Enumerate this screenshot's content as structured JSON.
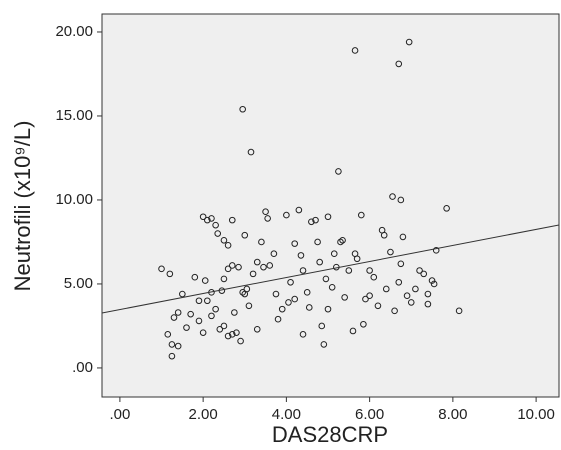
{
  "chart_data": {
    "type": "scatter",
    "xlabel": "DAS28CRP",
    "ylabel": "Neutrofili (x10⁹/L)",
    "xlim": [
      -0.43,
      10.55
    ],
    "ylim": [
      -1.73,
      21.07
    ],
    "xticks": [
      {
        "value": 0,
        "label": ".00"
      },
      {
        "value": 2,
        "label": "2.00"
      },
      {
        "value": 4,
        "label": "4.00"
      },
      {
        "value": 6,
        "label": "6.00"
      },
      {
        "value": 8,
        "label": "8.00"
      },
      {
        "value": 10,
        "label": "10.00"
      }
    ],
    "yticks": [
      {
        "value": 0,
        "label": ".00"
      },
      {
        "value": 5,
        "label": "5.00"
      },
      {
        "value": 10,
        "label": "10.00"
      },
      {
        "value": 15,
        "label": "15.00"
      },
      {
        "value": 20,
        "label": "20.00"
      }
    ],
    "plot_background": "#efefef",
    "marker_color": "#222222",
    "x": [
      2.95,
      3.15,
      5.65,
      6.7,
      6.95,
      5.25,
      6.55,
      6.75,
      7.85,
      8.15,
      1.0,
      1.2,
      1.15,
      1.25,
      1.25,
      1.4,
      1.3,
      1.4,
      1.5,
      1.6,
      1.7,
      1.8,
      1.9,
      2.0,
      2.1,
      2.2,
      2.3,
      2.35,
      2.5,
      2.6,
      2.7,
      2.7,
      2.6,
      2.5,
      2.45,
      2.3,
      2.2,
      2.1,
      2.05,
      2.0,
      2.2,
      2.4,
      2.5,
      2.6,
      2.7,
      2.75,
      2.8,
      2.9,
      3.0,
      3.05,
      3.1,
      3.2,
      3.3,
      3.4,
      3.5,
      3.55,
      3.7,
      3.75,
      3.8,
      3.9,
      4.0,
      4.1,
      4.2,
      4.3,
      4.35,
      4.4,
      4.5,
      4.55,
      4.6,
      4.7,
      4.75,
      4.8,
      4.85,
      4.9,
      4.95,
      5.0,
      5.1,
      5.15,
      5.2,
      5.3,
      5.35,
      5.4,
      5.5,
      5.6,
      5.65,
      5.7,
      5.8,
      5.85,
      5.9,
      6.0,
      6.1,
      6.2,
      6.3,
      6.35,
      6.4,
      6.5,
      6.6,
      6.7,
      6.75,
      6.8,
      6.9,
      7.0,
      7.1,
      7.2,
      7.3,
      7.4,
      7.5,
      7.55,
      7.6,
      7.4,
      3.6,
      3.0,
      2.85,
      4.2,
      5.0,
      6.0,
      1.9,
      3.3,
      4.4,
      2.95,
      3.45,
      4.05
    ],
    "y": [
      15.4,
      12.85,
      18.9,
      18.1,
      19.4,
      11.7,
      10.2,
      10.0,
      9.5,
      3.4,
      5.9,
      5.6,
      2.0,
      0.7,
      1.4,
      1.3,
      3.0,
      3.3,
      4.4,
      2.4,
      3.2,
      5.4,
      4.0,
      9.0,
      8.8,
      8.9,
      8.5,
      8.0,
      7.6,
      7.3,
      8.8,
      6.1,
      5.9,
      5.3,
      4.6,
      3.5,
      4.5,
      4.0,
      5.2,
      2.1,
      3.1,
      2.3,
      2.5,
      1.9,
      2.0,
      3.3,
      2.1,
      1.6,
      4.4,
      4.7,
      3.7,
      5.6,
      6.3,
      7.5,
      9.3,
      8.9,
      6.8,
      4.4,
      2.9,
      3.5,
      9.1,
      5.1,
      4.1,
      9.4,
      6.7,
      5.8,
      4.5,
      3.6,
      8.7,
      8.8,
      7.5,
      6.3,
      2.5,
      1.4,
      5.3,
      3.5,
      4.8,
      6.8,
      6.0,
      7.5,
      7.6,
      4.2,
      5.8,
      2.2,
      6.8,
      6.5,
      9.1,
      2.6,
      4.1,
      4.3,
      5.4,
      3.7,
      8.2,
      7.9,
      4.7,
      6.9,
      3.4,
      5.1,
      6.2,
      7.8,
      4.3,
      3.9,
      4.7,
      5.8,
      5.6,
      4.4,
      5.2,
      5.0,
      7.0,
      3.8,
      6.1,
      7.9,
      6.0,
      7.4,
      9.0,
      5.8,
      2.8,
      2.3,
      2.0,
      4.5,
      6.0,
      3.9
    ],
    "fit_line": {
      "x": [
        -0.43,
        10.55
      ],
      "y": [
        3.27,
        8.51
      ],
      "color": "#333333"
    }
  }
}
